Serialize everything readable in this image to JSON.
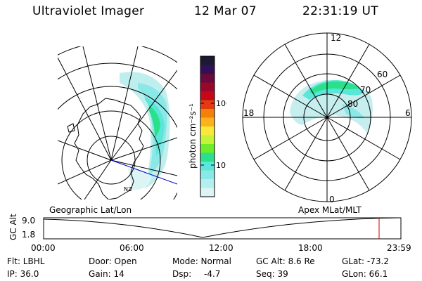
{
  "header": {
    "title": "Ultraviolet Imager",
    "date": "12 Mar 07",
    "time": "22:31:19 UT"
  },
  "colorbar": {
    "unit": "photon cm⁻²s⁻¹",
    "ticks": [
      "100",
      "10"
    ],
    "colors": [
      "#1e1830",
      "#321058",
      "#6a0a3c",
      "#98082c",
      "#c40818",
      "#e43a10",
      "#f4800a",
      "#fcb21a",
      "#fce83a",
      "#c4f43a",
      "#6cec2a",
      "#2ae08a",
      "#5ae6d8",
      "#8ae8e6",
      "#b4eeee",
      "#dcf4f4"
    ]
  },
  "geo_map": {
    "label": "Geographic Lat/Lon",
    "land_label": "NZ"
  },
  "polar_map": {
    "label": "Apex MLat/MLT",
    "mlt_labels": [
      "12",
      "18",
      "6",
      "0"
    ],
    "lat_labels": [
      "60",
      "70",
      "80"
    ]
  },
  "timeline": {
    "y_label": "GC Alt",
    "y_ticks": [
      "9.0",
      "1.8"
    ],
    "x_ticks": [
      "00:00",
      "06:00",
      "12:00",
      "18:00",
      "23:59"
    ],
    "marker_color": "#cc0000"
  },
  "info": {
    "flt": "Flt: LBHL",
    "ip": "IP: 36.0",
    "door": "Door: Open",
    "gain": "Gain: 14",
    "mode": "Mode: Normal",
    "dsp_label": "Dsp:",
    "dsp_value": "-4.7",
    "gc_alt": "GC Alt: 8.6 Re",
    "seq": "Seq: 39",
    "glat": "GLat: -73.2",
    "glon": "GLon: 66.1"
  }
}
